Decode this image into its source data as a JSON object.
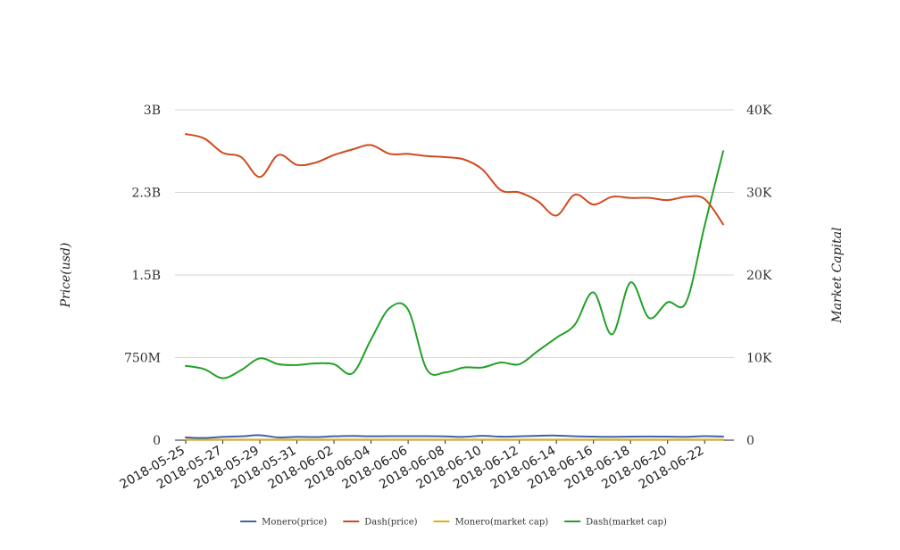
{
  "chart_data": {
    "type": "line",
    "title": "",
    "xlabel": "",
    "ylabel": "Price(usd)",
    "y2label": "Market Capital",
    "x": [
      "2018-05-25",
      "2018-05-26",
      "2018-05-27",
      "2018-05-28",
      "2018-05-29",
      "2018-05-30",
      "2018-05-31",
      "2018-06-01",
      "2018-06-02",
      "2018-06-03",
      "2018-06-04",
      "2018-06-05",
      "2018-06-06",
      "2018-06-07",
      "2018-06-08",
      "2018-06-09",
      "2018-06-10",
      "2018-06-11",
      "2018-06-12",
      "2018-06-13",
      "2018-06-14",
      "2018-06-15",
      "2018-06-16",
      "2018-06-17",
      "2018-06-18",
      "2018-06-19",
      "2018-06-20",
      "2018-06-21",
      "2018-06-22",
      "2018-06-23"
    ],
    "xticks": [
      "2018-05-25",
      "2018-05-27",
      "2018-05-29",
      "2018-05-31",
      "2018-06-02",
      "2018-06-04",
      "2018-06-06",
      "2018-06-08",
      "2018-06-10",
      "2018-06-12",
      "2018-06-14",
      "2018-06-16",
      "2018-06-18",
      "2018-06-20",
      "2018-06-22"
    ],
    "ylim": [
      0,
      3000000000
    ],
    "yticks": [
      {
        "value": 0,
        "label": "0"
      },
      {
        "value": 750000000,
        "label": "750M"
      },
      {
        "value": 1500000000,
        "label": "1.5B"
      },
      {
        "value": 2250000000,
        "label": "2.3B"
      },
      {
        "value": 3000000000,
        "label": "3B"
      }
    ],
    "y2lim": [
      0,
      40000
    ],
    "y2ticks": [
      {
        "value": 0,
        "label": "0"
      },
      {
        "value": 10000,
        "label": "10K"
      },
      {
        "value": 20000,
        "label": "20K"
      },
      {
        "value": 30000,
        "label": "30K"
      },
      {
        "value": 40000,
        "label": "40K"
      }
    ],
    "grid": true,
    "legend": "bottom",
    "series": [
      {
        "name": "Monero(price)",
        "axis": "left",
        "color": "#3b64ad",
        "values": [
          25000000,
          20000000,
          30000000,
          35000000,
          45000000,
          25000000,
          30000000,
          28000000,
          35000000,
          38000000,
          35000000,
          36000000,
          37000000,
          36000000,
          34000000,
          30000000,
          40000000,
          32000000,
          35000000,
          40000000,
          42000000,
          35000000,
          32000000,
          30000000,
          32000000,
          33000000,
          32000000,
          30000000,
          36000000,
          33000000
        ]
      },
      {
        "name": "Dash(price)",
        "axis": "left",
        "color": "#d04a20",
        "values": [
          2780000000,
          2740000000,
          2610000000,
          2570000000,
          2390000000,
          2590000000,
          2500000000,
          2520000000,
          2590000000,
          2640000000,
          2680000000,
          2600000000,
          2600000000,
          2580000000,
          2570000000,
          2550000000,
          2460000000,
          2270000000,
          2250000000,
          2170000000,
          2040000000,
          2230000000,
          2140000000,
          2210000000,
          2200000000,
          2200000000,
          2180000000,
          2210000000,
          2190000000,
          1960000000
        ]
      },
      {
        "name": "Monero(market cap)",
        "axis": "left",
        "color": "#e8ad0c",
        "values": [
          5000000,
          5000000,
          5000000,
          5000000,
          5000000,
          5000000,
          5000000,
          5000000,
          5000000,
          5000000,
          5000000,
          5000000,
          5000000,
          5000000,
          5000000,
          5000000,
          5000000,
          5000000,
          5000000,
          5000000,
          5000000,
          5000000,
          5000000,
          5000000,
          5000000,
          5000000,
          5000000,
          5000000,
          5000000,
          5000000
        ]
      },
      {
        "name": "Dash(market cap)",
        "axis": "right",
        "color": "#23a02a",
        "values": [
          9000,
          8600,
          7500,
          8500,
          9900,
          9200,
          9100,
          9300,
          9200,
          8100,
          12200,
          16000,
          15800,
          8600,
          8200,
          8800,
          8800,
          9400,
          9200,
          10800,
          12400,
          14000,
          17900,
          12800,
          19100,
          14800,
          16700,
          16700,
          26000,
          35000
        ]
      }
    ]
  }
}
